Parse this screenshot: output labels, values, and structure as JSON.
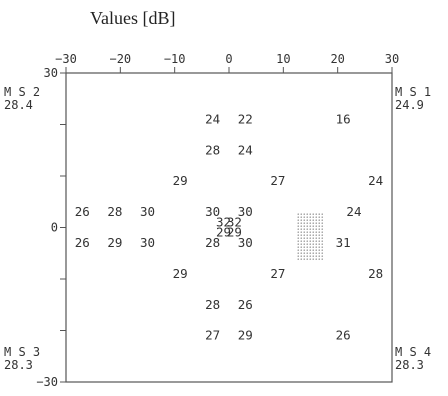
{
  "title": "Values [dB]",
  "chart_data": {
    "type": "scatter",
    "xlim": [
      -30,
      30
    ],
    "ylim": [
      -30,
      30
    ],
    "x_ticks": [
      "-30",
      "-20",
      "-10",
      "0",
      "10",
      "20",
      "30"
    ],
    "y_ticks": [
      {
        "v": 30,
        "label": "30"
      },
      {
        "v": 0,
        "label": "0"
      },
      {
        "v": -30,
        "label": "-30"
      }
    ],
    "points": [
      {
        "x": -3,
        "y": 21,
        "v": "24"
      },
      {
        "x": 3,
        "y": 21,
        "v": "22"
      },
      {
        "x": 21,
        "y": 21,
        "v": "16"
      },
      {
        "x": -3,
        "y": 15,
        "v": "28"
      },
      {
        "x": 3,
        "y": 15,
        "v": "24"
      },
      {
        "x": -9,
        "y": 9,
        "v": "29"
      },
      {
        "x": 9,
        "y": 9,
        "v": "27"
      },
      {
        "x": 27,
        "y": 9,
        "v": "24"
      },
      {
        "x": -27,
        "y": 3,
        "v": "26"
      },
      {
        "x": -21,
        "y": 3,
        "v": "28"
      },
      {
        "x": -15,
        "y": 3,
        "v": "30"
      },
      {
        "x": -3,
        "y": 3,
        "v": "30"
      },
      {
        "x": 3,
        "y": 3,
        "v": "30"
      },
      {
        "x": 23,
        "y": 3,
        "v": "24"
      },
      {
        "x": -1,
        "y": 1,
        "v": "32"
      },
      {
        "x": 1,
        "y": 1,
        "v": "32"
      },
      {
        "x": -1,
        "y": -1,
        "v": "29"
      },
      {
        "x": 1,
        "y": -1,
        "v": "29"
      },
      {
        "x": -27,
        "y": -3,
        "v": "26"
      },
      {
        "x": -21,
        "y": -3,
        "v": "29"
      },
      {
        "x": -15,
        "y": -3,
        "v": "30"
      },
      {
        "x": -3,
        "y": -3,
        "v": "28"
      },
      {
        "x": 3,
        "y": -3,
        "v": "30"
      },
      {
        "x": 21,
        "y": -3,
        "v": "31"
      },
      {
        "x": -9,
        "y": -9,
        "v": "29"
      },
      {
        "x": 9,
        "y": -9,
        "v": "27"
      },
      {
        "x": 27,
        "y": -9,
        "v": "28"
      },
      {
        "x": -3,
        "y": -15,
        "v": "28"
      },
      {
        "x": 3,
        "y": -15,
        "v": "26"
      },
      {
        "x": -3,
        "y": -21,
        "v": "27"
      },
      {
        "x": 3,
        "y": -21,
        "v": "29"
      },
      {
        "x": 21,
        "y": -21,
        "v": "26"
      }
    ],
    "blind_spot": {
      "x": [
        12,
        18
      ],
      "y": [
        -6,
        3
      ]
    },
    "corner_labels": [
      {
        "id": "ms2",
        "name": "MS2",
        "value": "28.4",
        "corner": "top-left"
      },
      {
        "id": "ms1",
        "name": "MS1",
        "value": "24.9",
        "corner": "top-right"
      },
      {
        "id": "ms3",
        "name": "MS3",
        "value": "28.3",
        "corner": "bottom-left"
      },
      {
        "id": "ms4",
        "name": "MS4",
        "value": "28.3",
        "corner": "bottom-right"
      }
    ]
  }
}
